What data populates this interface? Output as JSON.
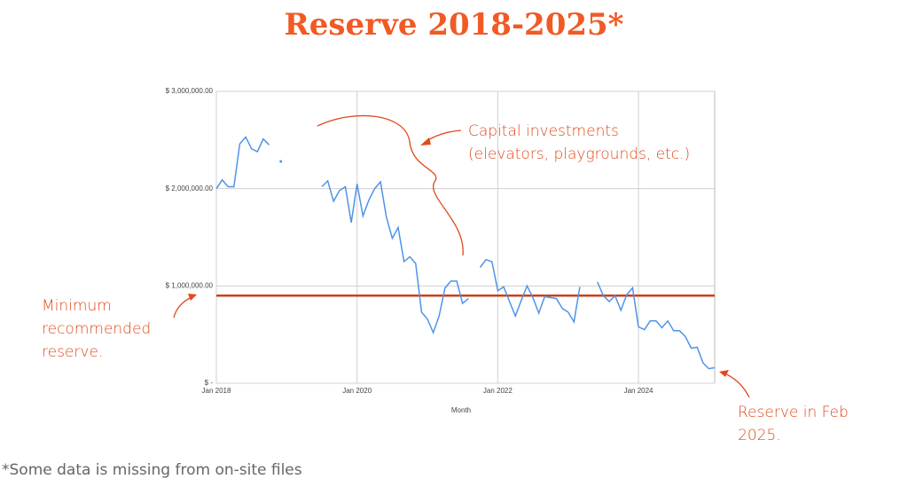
{
  "chart_data": {
    "type": "line",
    "title": "Reserve 2018-2025*",
    "x_label": "Month",
    "x": [
      "2018-01",
      "2018-02",
      "2018-03",
      "2018-04",
      "2018-05",
      "2018-06",
      "2018-07",
      "2018-08",
      "2018-09",
      "2018-10",
      "2018-11",
      "2018-12",
      "2019-01",
      "2019-02",
      "2019-03",
      "2019-04",
      "2019-05",
      "2019-06",
      "2019-07",
      "2019-08",
      "2019-09",
      "2019-10",
      "2019-11",
      "2019-12",
      "2020-01",
      "2020-02",
      "2020-03",
      "2020-04",
      "2020-05",
      "2020-06",
      "2020-07",
      "2020-08",
      "2020-09",
      "2020-10",
      "2020-11",
      "2020-12",
      "2021-01",
      "2021-02",
      "2021-03",
      "2021-04",
      "2021-05",
      "2021-06",
      "2021-07",
      "2021-08",
      "2021-09",
      "2021-10",
      "2021-11",
      "2021-12",
      "2022-01",
      "2022-02",
      "2022-03",
      "2022-04",
      "2022-05",
      "2022-06",
      "2022-07",
      "2022-08",
      "2022-09",
      "2022-10",
      "2022-11",
      "2022-12",
      "2023-01",
      "2023-02",
      "2023-03",
      "2023-04",
      "2023-05",
      "2023-06",
      "2023-07",
      "2023-08",
      "2023-09",
      "2023-10",
      "2023-11",
      "2023-12",
      "2024-01",
      "2024-02",
      "2024-03",
      "2024-04",
      "2024-05",
      "2024-06",
      "2024-07",
      "2024-08",
      "2024-09",
      "2024-10",
      "2024-11",
      "2024-12",
      "2025-01",
      "2025-02"
    ],
    "series": [
      {
        "color": "#4f94e8",
        "values": [
          2000000,
          2090000,
          2020000,
          2020000,
          2460000,
          2530000,
          2410000,
          2380000,
          2510000,
          2450000,
          null,
          2280000,
          null,
          null,
          null,
          null,
          null,
          null,
          2020000,
          2080000,
          1870000,
          1980000,
          2020000,
          1650000,
          2050000,
          1720000,
          1880000,
          2000000,
          2070000,
          1710000,
          1490000,
          1600000,
          1250000,
          1300000,
          1230000,
          730000,
          660000,
          520000,
          690000,
          980000,
          1050000,
          1050000,
          820000,
          870000,
          null,
          1190000,
          1270000,
          1250000,
          950000,
          990000,
          840000,
          690000,
          850000,
          1000000,
          880000,
          720000,
          890000,
          880000,
          870000,
          770000,
          730000,
          630000,
          990000,
          null,
          null,
          1040000,
          900000,
          840000,
          900000,
          750000,
          910000,
          980000,
          580000,
          550000,
          640000,
          640000,
          570000,
          640000,
          540000,
          540000,
          480000,
          360000,
          370000,
          210000,
          150000,
          160000
        ]
      }
    ],
    "reference_line": {
      "value": 900000,
      "color": "#c8401e"
    },
    "xlim": [
      "2018-01",
      "2025-02"
    ],
    "xticks": [
      {
        "value": "2018-01",
        "label": "Jan 2018"
      },
      {
        "value": "2020-01",
        "label": "Jan 2020"
      },
      {
        "value": "2022-01",
        "label": "Jan 2022"
      },
      {
        "value": "2024-01",
        "label": "Jan 2024"
      }
    ],
    "ylim": [
      0,
      3000000
    ],
    "yticks": [
      {
        "value": 0,
        "label": "$ -"
      },
      {
        "value": 1000000,
        "label": "$ 1,000,000.00"
      },
      {
        "value": 2000000,
        "label": "$ 2,000,000.00"
      },
      {
        "value": 3000000,
        "label": "$ 3,000,000.00"
      }
    ],
    "grid": true,
    "annotations": [
      {
        "lines": [
          "Capital investments",
          "(elevators, playgrounds, etc.)"
        ]
      },
      {
        "lines": [
          "Minimum",
          "recommended",
          "reserve."
        ]
      },
      {
        "lines": [
          "Reserve in Feb",
          "2025."
        ]
      }
    ],
    "footnote": "*Some data is missing from on-site files"
  }
}
